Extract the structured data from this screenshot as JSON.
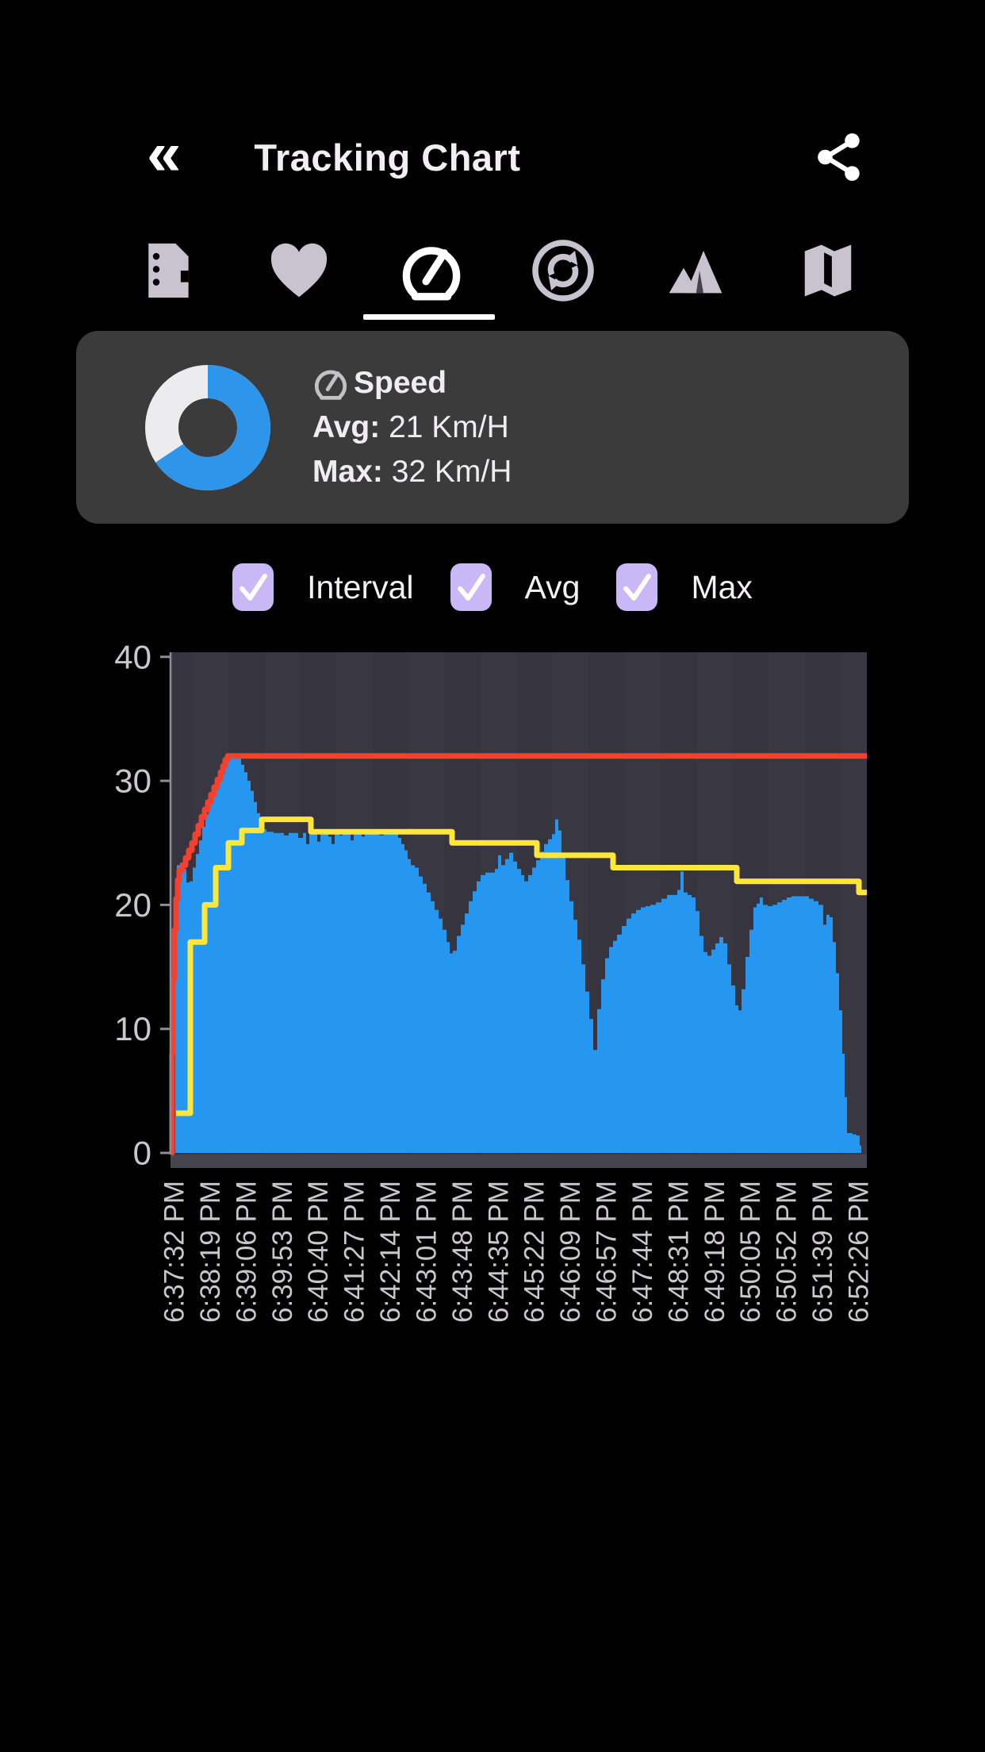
{
  "header": {
    "back_glyph": "«",
    "title": "Tracking Chart"
  },
  "tabs": [
    {
      "name": "notes",
      "selected": false
    },
    {
      "name": "heart-rate",
      "selected": false
    },
    {
      "name": "speed",
      "selected": true
    },
    {
      "name": "cadence",
      "selected": false
    },
    {
      "name": "elevation",
      "selected": false
    },
    {
      "name": "map",
      "selected": false
    }
  ],
  "card": {
    "title": "Speed",
    "avg_label": "Avg:",
    "avg_value": "21 Km/H",
    "max_label": "Max:",
    "max_value": "32 Km/H",
    "donut_percent": 65.6,
    "donut_color": "#2e96ea",
    "donut_track_color": "#ecebee"
  },
  "legend": {
    "items": [
      {
        "label": "Interval",
        "checked": true
      },
      {
        "label": "Avg",
        "checked": true
      },
      {
        "label": "Max",
        "checked": true
      }
    ],
    "checkbox_color": "#c9b7f6"
  },
  "chart_data": {
    "type": "area",
    "x_axis": {
      "labels": [
        "6:37:32 PM",
        "6:38:19 PM",
        "6:39:06 PM",
        "6:39:53 PM",
        "6:40:40 PM",
        "6:41:27 PM",
        "6:42:14 PM",
        "6:43:01 PM",
        "6:43:48 PM",
        "6:44:35 PM",
        "6:45:22 PM",
        "6:46:09 PM",
        "6:46:57 PM",
        "6:47:44 PM",
        "6:48:31 PM",
        "6:49:18 PM",
        "6:50:05 PM",
        "6:50:52 PM",
        "6:51:39 PM",
        "6:52:26 PM"
      ]
    },
    "y_axis": {
      "ticks": [
        0,
        10,
        20,
        30,
        40
      ],
      "min": 0,
      "max": 40
    },
    "plot": {
      "bg": "#36343e",
      "stripe": "rgba(255,255,255,0.02)",
      "axis_color": "#8f8d96",
      "tick_label_color": "#c9c7cd",
      "bottom_strip": "#46444e"
    },
    "series": [
      {
        "name": "Interval",
        "render": "step-area",
        "color": "#2597f0",
        "points": [
          [
            220,
            0
          ],
          [
            221,
            14
          ],
          [
            223,
            23.2
          ],
          [
            227,
            23.4
          ],
          [
            231,
            22.9
          ],
          [
            235,
            21.8
          ],
          [
            239,
            21.9
          ],
          [
            243,
            23.0
          ],
          [
            247,
            24.1
          ],
          [
            251,
            25.2
          ],
          [
            255,
            26.3
          ],
          [
            259,
            27.3
          ],
          [
            263,
            28.2
          ],
          [
            267,
            29.1
          ],
          [
            271,
            29.9
          ],
          [
            275,
            30.6
          ],
          [
            279,
            31.2
          ],
          [
            283,
            31.6
          ],
          [
            287,
            31.8
          ],
          [
            295,
            31.9
          ],
          [
            300,
            31.8
          ],
          [
            304,
            31.3
          ],
          [
            308,
            30.7
          ],
          [
            312,
            30.0
          ],
          [
            316,
            29.2
          ],
          [
            320,
            28.3
          ],
          [
            324,
            27.4
          ],
          [
            328,
            26.6
          ],
          [
            332,
            26.1
          ],
          [
            336,
            25.9
          ],
          [
            345,
            25.8
          ],
          [
            352,
            25.8
          ],
          [
            358,
            25.6
          ],
          [
            364,
            25.8
          ],
          [
            370,
            25.8
          ],
          [
            376,
            25.4
          ],
          [
            382,
            25.8
          ],
          [
            386,
            24.9
          ],
          [
            390,
            25.8
          ],
          [
            396,
            25.8
          ],
          [
            400,
            25.1
          ],
          [
            404,
            25.8
          ],
          [
            410,
            25.8
          ],
          [
            414,
            25.5
          ],
          [
            418,
            24.9
          ],
          [
            422,
            25.8
          ],
          [
            428,
            25.6
          ],
          [
            432,
            25.8
          ],
          [
            438,
            25.8
          ],
          [
            442,
            25.2
          ],
          [
            446,
            25.8
          ],
          [
            452,
            25.8
          ],
          [
            456,
            25.5
          ],
          [
            460,
            25.8
          ],
          [
            466,
            25.7
          ],
          [
            472,
            25.8
          ],
          [
            478,
            25.6
          ],
          [
            484,
            25.8
          ],
          [
            490,
            25.8
          ],
          [
            496,
            25.7
          ],
          [
            502,
            25.4
          ],
          [
            506,
            24.9
          ],
          [
            510,
            24.4
          ],
          [
            514,
            23.7
          ],
          [
            518,
            23.2
          ],
          [
            523,
            23.0
          ],
          [
            528,
            22.3
          ],
          [
            533,
            21.7
          ],
          [
            538,
            21.0
          ],
          [
            543,
            20.3
          ],
          [
            548,
            19.6
          ],
          [
            553,
            18.9
          ],
          [
            558,
            18.0
          ],
          [
            563,
            17.0
          ],
          [
            567,
            16.1
          ],
          [
            571,
            16.3
          ],
          [
            576,
            17.5
          ],
          [
            581,
            18.4
          ],
          [
            586,
            19.3
          ],
          [
            591,
            20.3
          ],
          [
            596,
            21.1
          ],
          [
            601,
            21.9
          ],
          [
            606,
            22.4
          ],
          [
            612,
            22.6
          ],
          [
            618,
            22.6
          ],
          [
            624,
            22.9
          ],
          [
            628,
            24.0
          ],
          [
            632,
            23.2
          ],
          [
            637,
            23.7
          ],
          [
            642,
            24.2
          ],
          [
            647,
            23.5
          ],
          [
            652,
            22.9
          ],
          [
            657,
            22.4
          ],
          [
            661,
            21.9
          ],
          [
            666,
            22.4
          ],
          [
            671,
            23.0
          ],
          [
            676,
            23.6
          ],
          [
            681,
            24.3
          ],
          [
            686,
            24.9
          ],
          [
            691,
            25.3
          ],
          [
            696,
            25.7
          ],
          [
            700,
            26.9
          ],
          [
            704,
            26.0
          ],
          [
            708,
            24.0
          ],
          [
            713,
            22.0
          ],
          [
            718,
            20.3
          ],
          [
            723,
            18.8
          ],
          [
            728,
            17.2
          ],
          [
            733,
            15.2
          ],
          [
            738,
            13.0
          ],
          [
            743,
            10.8
          ],
          [
            748,
            8.3
          ],
          [
            753,
            11.6
          ],
          [
            758,
            14.0
          ],
          [
            763,
            15.7
          ],
          [
            768,
            16.6
          ],
          [
            773,
            17.1
          ],
          [
            778,
            17.6
          ],
          [
            784,
            18.3
          ],
          [
            790,
            18.9
          ],
          [
            796,
            19.3
          ],
          [
            802,
            19.6
          ],
          [
            808,
            19.8
          ],
          [
            814,
            19.9
          ],
          [
            820,
            20.0
          ],
          [
            827,
            20.2
          ],
          [
            834,
            20.5
          ],
          [
            841,
            20.8
          ],
          [
            848,
            20.8
          ],
          [
            854,
            21.2
          ],
          [
            858,
            22.7
          ],
          [
            862,
            21.0
          ],
          [
            867,
            20.8
          ],
          [
            872,
            20.6
          ],
          [
            877,
            19.5
          ],
          [
            882,
            17.5
          ],
          [
            887,
            16.2
          ],
          [
            892,
            15.9
          ],
          [
            897,
            16.4
          ],
          [
            902,
            16.9
          ],
          [
            907,
            17.4
          ],
          [
            912,
            16.9
          ],
          [
            917,
            15.2
          ],
          [
            922,
            13.5
          ],
          [
            927,
            11.9
          ],
          [
            931,
            11.5
          ],
          [
            935,
            13.2
          ],
          [
            940,
            15.8
          ],
          [
            945,
            18.0
          ],
          [
            950,
            19.8
          ],
          [
            954,
            20.1
          ],
          [
            958,
            20.6
          ],
          [
            962,
            20.0
          ],
          [
            968,
            19.9
          ],
          [
            974,
            20.0
          ],
          [
            980,
            20.2
          ],
          [
            986,
            20.4
          ],
          [
            992,
            20.6
          ],
          [
            998,
            20.7
          ],
          [
            1006,
            20.7
          ],
          [
            1014,
            20.7
          ],
          [
            1020,
            20.5
          ],
          [
            1026,
            20.3
          ],
          [
            1032,
            20.0
          ],
          [
            1038,
            18.4
          ],
          [
            1042,
            19.2
          ],
          [
            1046,
            19.0
          ],
          [
            1050,
            17.0
          ],
          [
            1054,
            14.5
          ],
          [
            1058,
            11.5
          ],
          [
            1062,
            8.0
          ],
          [
            1065,
            4.5
          ],
          [
            1068,
            1.6
          ],
          [
            1075,
            1.5
          ],
          [
            1080,
            1.4
          ],
          [
            1084,
            0.6
          ],
          [
            1086,
            0
          ]
        ]
      },
      {
        "name": "Avg",
        "render": "step-line",
        "color": "#ffe63a",
        "points": [
          [
            222,
            3.2
          ],
          [
            240,
            17
          ],
          [
            258,
            20
          ],
          [
            272,
            23
          ],
          [
            288,
            25
          ],
          [
            305,
            26
          ],
          [
            330,
            26.9
          ],
          [
            392,
            25.9
          ],
          [
            570,
            25.0
          ],
          [
            677,
            24.0
          ],
          [
            773,
            23.0
          ],
          [
            929,
            21.9
          ],
          [
            1083,
            21.0
          ],
          [
            1093,
            21.0
          ]
        ]
      },
      {
        "name": "Max",
        "render": "step-line",
        "color": "#f4402e",
        "points": [
          [
            216,
            0
          ],
          [
            217,
            8
          ],
          [
            218,
            14
          ],
          [
            220,
            18
          ],
          [
            222,
            20.5
          ],
          [
            224,
            22
          ],
          [
            226,
            22.8
          ],
          [
            230,
            23.2
          ],
          [
            234,
            23.8
          ],
          [
            238,
            24.4
          ],
          [
            242,
            25.0
          ],
          [
            246,
            25.7
          ],
          [
            250,
            26.4
          ],
          [
            254,
            27.1
          ],
          [
            258,
            27.7
          ],
          [
            262,
            28.3
          ],
          [
            266,
            28.9
          ],
          [
            270,
            29.5
          ],
          [
            274,
            30.1
          ],
          [
            278,
            30.7
          ],
          [
            281,
            31.2
          ],
          [
            284,
            31.7
          ],
          [
            287,
            32
          ],
          [
            1093,
            32
          ]
        ]
      }
    ]
  }
}
